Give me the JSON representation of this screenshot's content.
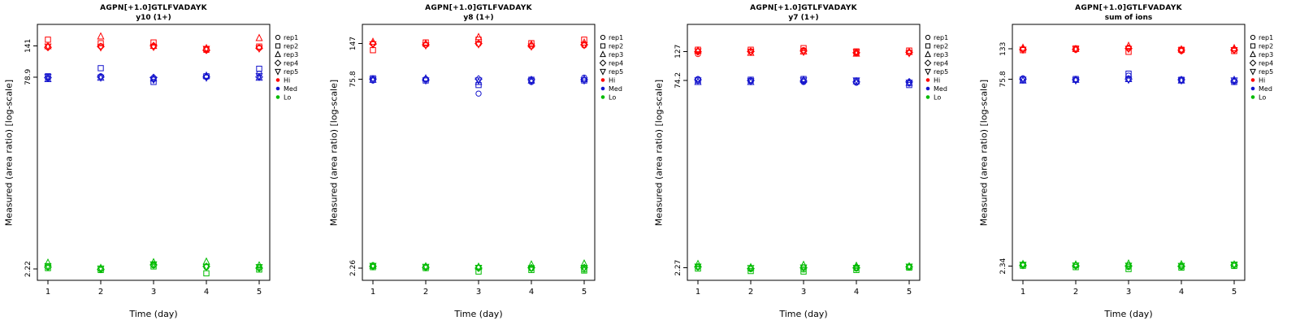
{
  "page": {
    "background": "#ffffff"
  },
  "colors": {
    "hi": "#FF0000",
    "med": "#1414CD",
    "lo": "#00BB00",
    "axis": "#000000"
  },
  "symbols": [
    "circle",
    "square",
    "triangle-up",
    "diamond",
    "triangle-down"
  ],
  "legend": {
    "position": "right",
    "items": [
      {
        "label": "rep1",
        "symbol": "circle",
        "color": "#000000",
        "filled": false
      },
      {
        "label": "rep2",
        "symbol": "square",
        "color": "#000000",
        "filled": false
      },
      {
        "label": "rep3",
        "symbol": "triangle-up",
        "color": "#000000",
        "filled": false
      },
      {
        "label": "rep4",
        "symbol": "diamond",
        "color": "#000000",
        "filled": false
      },
      {
        "label": "rep5",
        "symbol": "triangle-down",
        "color": "#000000",
        "filled": false
      },
      {
        "label": "Hi",
        "symbol": "dot",
        "color": "#FF0000",
        "filled": true
      },
      {
        "label": "Med",
        "symbol": "dot",
        "color": "#1414CD",
        "filled": true
      },
      {
        "label": "Lo",
        "symbol": "dot",
        "color": "#00BB00",
        "filled": true
      }
    ]
  },
  "chart_data": [
    {
      "type": "scatter",
      "title": "AGPN[+1.0]GTLFVADAYK",
      "subtitle": "y10 (1+)",
      "xlabel": "Time (day)",
      "ylabel": "Measured (area ratio) [log-scale]",
      "x": [
        1,
        2,
        3,
        4,
        5
      ],
      "xticks": [
        "1",
        "2",
        "3",
        "4",
        "5"
      ],
      "ylog": true,
      "ylim": [
        1.8,
        210
      ],
      "yticks": [
        {
          "value": 141,
          "label": "141"
        },
        {
          "value": 78.9,
          "label": "78.9"
        },
        {
          "value": 2.22,
          "label": "2.22"
        }
      ],
      "series": [
        {
          "name": "Hi",
          "color": "#FF0000",
          "values": [
            [
              138,
              140,
              139,
              132,
              136
            ],
            [
              158,
              148,
              150,
              131,
              139
            ],
            [
              140,
              168,
              141,
              135,
              163
            ],
            [
              137,
              139,
              141,
              130,
              135
            ],
            [
              139,
              137,
              138,
              133,
              134
            ]
          ]
        },
        {
          "name": "Med",
          "color": "#1414CD",
          "values": [
            [
              77,
              80,
              76,
              79,
              84
            ],
            [
              80,
              93,
              72,
              80,
              92
            ],
            [
              76,
              78,
              77,
              81,
              78
            ],
            [
              78,
              79,
              78,
              79,
              79
            ],
            [
              79,
              78,
              75,
              78,
              80
            ]
          ]
        },
        {
          "name": "Lo",
          "color": "#00BB00",
          "values": [
            [
              2.32,
              2.22,
              2.38,
              2.3,
              2.28
            ],
            [
              2.26,
              2.18,
              2.33,
              2.05,
              2.2
            ],
            [
              2.5,
              2.27,
              2.52,
              2.55,
              2.38
            ],
            [
              2.3,
              2.21,
              2.4,
              2.33,
              2.26
            ],
            [
              2.34,
              2.24,
              2.42,
              2.31,
              2.3
            ]
          ]
        }
      ]
    },
    {
      "type": "scatter",
      "title": "AGPN[+1.0]GTLFVADAYK",
      "subtitle": "y8 (1+)",
      "xlabel": "Time (day)",
      "ylabel": "Measured (area ratio) [log-scale]",
      "x": [
        1,
        2,
        3,
        4,
        5
      ],
      "xticks": [
        "1",
        "2",
        "3",
        "4",
        "5"
      ],
      "ylog": true,
      "ylim": [
        1.8,
        210
      ],
      "yticks": [
        {
          "value": 147,
          "label": "147"
        },
        {
          "value": 75.8,
          "label": "75.8"
        },
        {
          "value": 2.26,
          "label": "2.26"
        }
      ],
      "series": [
        {
          "name": "Hi",
          "color": "#FF0000",
          "values": [
            [
              147,
              143,
              146,
              140,
              142
            ],
            [
              130,
              150,
              158,
              148,
              158
            ],
            [
              152,
              147,
              166,
              145,
              150
            ],
            [
              146,
              144,
              147,
              141,
              144
            ],
            [
              145,
              142,
              145,
              139,
              143
            ]
          ]
        },
        {
          "name": "Med",
          "color": "#1414CD",
          "values": [
            [
              74,
              76,
              58,
              72,
              78
            ],
            [
              77,
              74,
              68,
              75,
              74
            ],
            [
              75,
              77,
              72,
              74,
              76
            ],
            [
              76,
              75,
              76,
              75,
              75
            ],
            [
              75,
              74,
              74,
              73,
              74
            ]
          ]
        },
        {
          "name": "Lo",
          "color": "#00BB00",
          "values": [
            [
              2.38,
              2.3,
              2.28,
              2.24,
              2.2
            ],
            [
              2.3,
              2.26,
              2.12,
              2.18,
              2.16
            ],
            [
              2.36,
              2.34,
              2.32,
              2.42,
              2.46
            ],
            [
              2.33,
              2.29,
              2.26,
              2.27,
              2.28
            ],
            [
              2.35,
              2.31,
              2.27,
              2.25,
              2.26
            ]
          ]
        }
      ]
    },
    {
      "type": "scatter",
      "title": "AGPN[+1.0]GTLFVADAYK",
      "subtitle": "y7 (1+)",
      "xlabel": "Time (day)",
      "ylabel": "Measured (area ratio) [log-scale]",
      "x": [
        1,
        2,
        3,
        4,
        5
      ],
      "xticks": [
        "1",
        "2",
        "3",
        "4",
        "5"
      ],
      "ylog": true,
      "ylim": [
        1.8,
        210
      ],
      "yticks": [
        {
          "value": 127,
          "label": "127"
        },
        {
          "value": 74.2,
          "label": "74.2"
        },
        {
          "value": 2.27,
          "label": "2.27"
        }
      ],
      "series": [
        {
          "name": "Hi",
          "color": "#FF0000",
          "values": [
            [
              121,
              126,
              130,
              122,
              124
            ],
            [
              131,
              131,
              135,
              127,
              129
            ],
            [
              129,
              124,
              127,
              122,
              126
            ],
            [
              126,
              127,
              128,
              124,
              125
            ],
            [
              127,
              126,
              126,
              125,
              123
            ]
          ]
        },
        {
          "name": "Med",
          "color": "#1414CD",
          "values": [
            [
              76,
              73,
              72,
              71,
              70
            ],
            [
              74,
              75,
              76,
              73,
              68
            ],
            [
              72,
              72,
              75,
              73,
              71
            ],
            [
              75,
              74,
              73,
              72,
              72
            ],
            [
              74,
              73,
              74,
              74,
              71
            ]
          ]
        },
        {
          "name": "Lo",
          "color": "#00BB00",
          "values": [
            [
              2.3,
              2.22,
              2.2,
              2.24,
              2.3
            ],
            [
              2.24,
              2.14,
              2.12,
              2.18,
              2.28
            ],
            [
              2.44,
              2.3,
              2.4,
              2.36,
              2.34
            ],
            [
              2.31,
              2.24,
              2.27,
              2.28,
              2.31
            ],
            [
              2.32,
              2.26,
              2.28,
              2.27,
              2.32
            ]
          ]
        }
      ]
    },
    {
      "type": "scatter",
      "title": "AGPN[+1.0]GTLFVADAYK",
      "subtitle": "sum of ions",
      "xlabel": "Time (day)",
      "ylabel": "Measured (area ratio) [log-scale]",
      "x": [
        1,
        2,
        3,
        4,
        5
      ],
      "xticks": [
        "1",
        "2",
        "3",
        "4",
        "5"
      ],
      "ylog": true,
      "ylim": [
        1.8,
        210
      ],
      "yticks": [
        {
          "value": 133,
          "label": "133"
        },
        {
          "value": 75.8,
          "label": "75.8"
        },
        {
          "value": 2.34,
          "label": "2.34"
        }
      ],
      "series": [
        {
          "name": "Hi",
          "color": "#FF0000",
          "values": [
            [
              133,
              131,
              136,
              128,
              131
            ],
            [
              130,
              134,
              126,
              131,
              128
            ],
            [
              136,
              133,
              141,
              132,
              135
            ],
            [
              132,
              132,
              134,
              130,
              131
            ],
            [
              131,
              133,
              133,
              129,
              130
            ]
          ]
        },
        {
          "name": "Med",
          "color": "#1414CD",
          "values": [
            [
              77,
              75,
              81,
              74,
              73
            ],
            [
              75,
              76,
              84,
              75,
              72
            ],
            [
              74,
              75,
              76,
              74,
              75
            ],
            [
              76,
              75,
              76,
              75,
              73
            ],
            [
              75,
              74,
              75,
              74,
              74
            ]
          ]
        },
        {
          "name": "Lo",
          "color": "#00BB00",
          "values": [
            [
              2.42,
              2.36,
              2.3,
              2.32,
              2.4
            ],
            [
              2.36,
              2.3,
              2.22,
              2.28,
              2.35
            ],
            [
              2.44,
              2.42,
              2.46,
              2.43,
              2.42
            ],
            [
              2.38,
              2.36,
              2.35,
              2.34,
              2.39
            ],
            [
              2.4,
              2.37,
              2.36,
              2.35,
              2.41
            ]
          ]
        }
      ]
    }
  ]
}
